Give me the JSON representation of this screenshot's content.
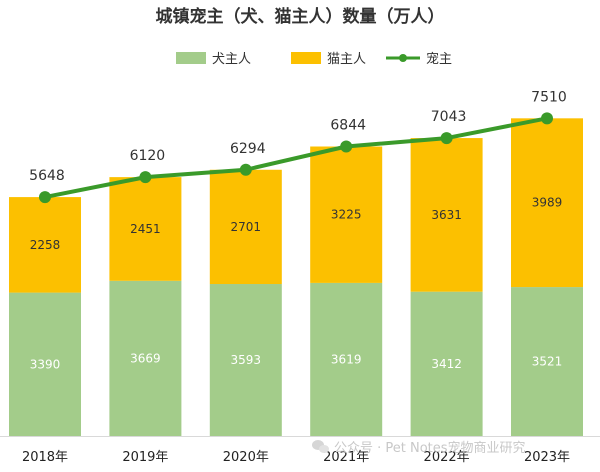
{
  "chart_data": {
    "type": "bar",
    "title": "城镇宠主（犬、猫主人）数量（万人）",
    "categories": [
      "2018年",
      "2019年",
      "2020年",
      "2021年",
      "2022年",
      "2023年"
    ],
    "series": [
      {
        "name": "犬主人",
        "type": "bar",
        "stack": "total",
        "color": "#a3cc8a",
        "values": [
          3390,
          3669,
          3593,
          3619,
          3412,
          3521
        ]
      },
      {
        "name": "猫主人",
        "type": "bar",
        "stack": "total",
        "color": "#fcc000",
        "values": [
          2258,
          2451,
          2701,
          3225,
          3631,
          3989
        ]
      },
      {
        "name": "宠主",
        "type": "line",
        "color": "#3a9a2a",
        "values": [
          5648,
          6120,
          6294,
          6844,
          7043,
          7510
        ]
      }
    ],
    "legend_position": "top-center",
    "grid": false
  },
  "watermark": {
    "text": "公众号 · Pet Notes宠物商业研究",
    "icon": "wechat-icon"
  }
}
